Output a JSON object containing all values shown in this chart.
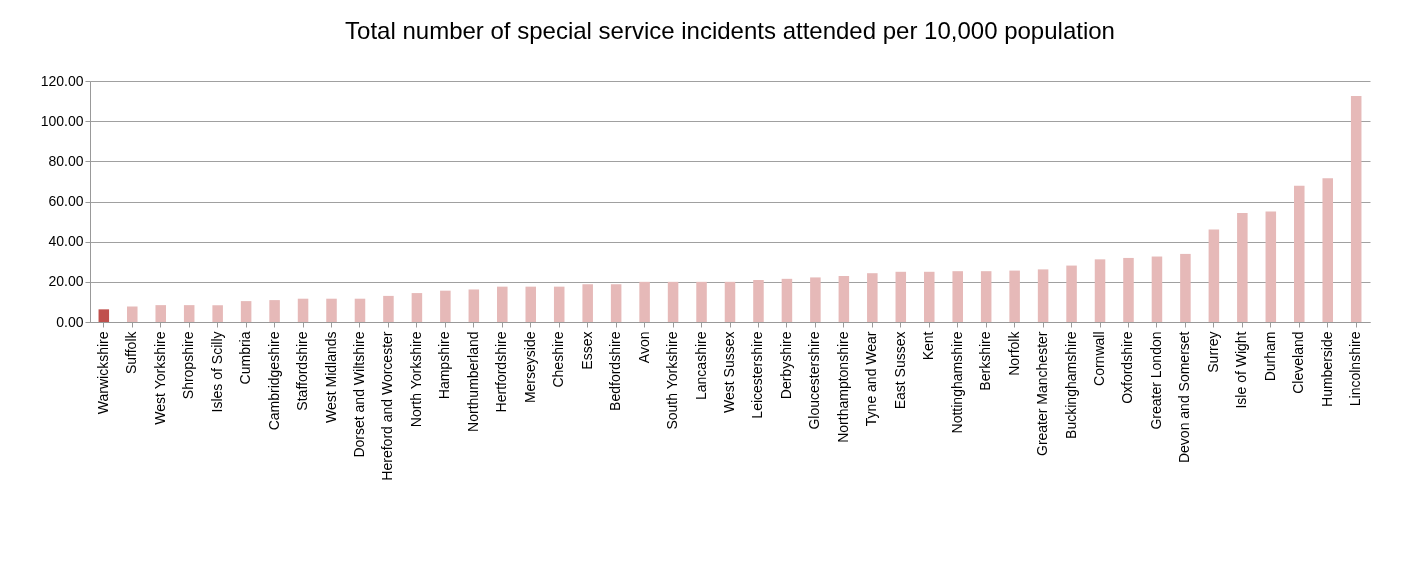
{
  "chart_data": {
    "type": "bar",
    "title": "Total number of special service incidents attended per 10,000 population",
    "categories": [
      "Warwickshire",
      "Suffolk",
      "West Yorkshire",
      "Shropshire",
      "Isles of Scilly",
      "Cumbria",
      "Cambridgeshire",
      "Staffordshire",
      "West Midlands",
      "Dorset and Wiltshire",
      "Hereford and Worcester",
      "North Yorkshire",
      "Hampshire",
      "Northumberland",
      "Hertfordshire",
      "Merseyside",
      "Cheshire",
      "Essex",
      "Bedfordshire",
      "Avon",
      "South Yorkshire",
      "Lancashire",
      "West Sussex",
      "Leicestershire",
      "Derbyshire",
      "Gloucestershire",
      "Northamptonshire",
      "Tyne and Wear",
      "East Sussex",
      "Kent",
      "Nottinghamshire",
      "Berkshire",
      "Norfolk",
      "Greater Manchester",
      "Buckinghamshire",
      "Cornwall",
      "Oxfordshire",
      "Greater London",
      "Devon and Somerset",
      "Surrey",
      "Isle of Wight",
      "Durham",
      "Cleveland",
      "Humberside",
      "Lincolnshire"
    ],
    "values": [
      6.3,
      7.7,
      8.4,
      8.4,
      8.4,
      10.4,
      10.9,
      11.6,
      11.6,
      11.6,
      13.0,
      14.4,
      15.6,
      16.2,
      17.6,
      17.6,
      17.6,
      18.8,
      18.8,
      20.0,
      20.0,
      20.0,
      20.0,
      20.9,
      21.5,
      22.2,
      22.9,
      24.3,
      25.0,
      25.0,
      25.3,
      25.3,
      25.6,
      26.2,
      28.1,
      31.2,
      31.9,
      32.6,
      33.9,
      46.0,
      54.3,
      55.0,
      67.8,
      71.6,
      112.5
    ],
    "colors": [
      "#c0504d",
      "#e6b9b8",
      "#e6b9b8",
      "#e6b9b8",
      "#e6b9b8",
      "#e6b9b8",
      "#e6b9b8",
      "#e6b9b8",
      "#e6b9b8",
      "#e6b9b8",
      "#e6b9b8",
      "#e6b9b8",
      "#e6b9b8",
      "#e6b9b8",
      "#e6b9b8",
      "#e6b9b8",
      "#e6b9b8",
      "#e6b9b8",
      "#e6b9b8",
      "#e6b9b8",
      "#e6b9b8",
      "#e6b9b8",
      "#e6b9b8",
      "#e6b9b8",
      "#e6b9b8",
      "#e6b9b8",
      "#e6b9b8",
      "#e6b9b8",
      "#e6b9b8",
      "#e6b9b8",
      "#e6b9b8",
      "#e6b9b8",
      "#e6b9b8",
      "#e6b9b8",
      "#e6b9b8",
      "#e6b9b8",
      "#e6b9b8",
      "#e6b9b8",
      "#e6b9b8",
      "#e6b9b8",
      "#e6b9b8",
      "#e6b9b8",
      "#e6b9b8",
      "#e6b9b8",
      "#e6b9b8"
    ],
    "ylim": [
      0,
      120
    ],
    "yticks": [
      {
        "value": 0,
        "label": "0.00"
      },
      {
        "value": 20,
        "label": "20.00"
      },
      {
        "value": 40,
        "label": "40.00"
      },
      {
        "value": 60,
        "label": "60.00"
      },
      {
        "value": 80,
        "label": "80.00"
      },
      {
        "value": 100,
        "label": "100.00"
      },
      {
        "value": 120,
        "label": "120.00"
      }
    ],
    "grid": "y"
  }
}
